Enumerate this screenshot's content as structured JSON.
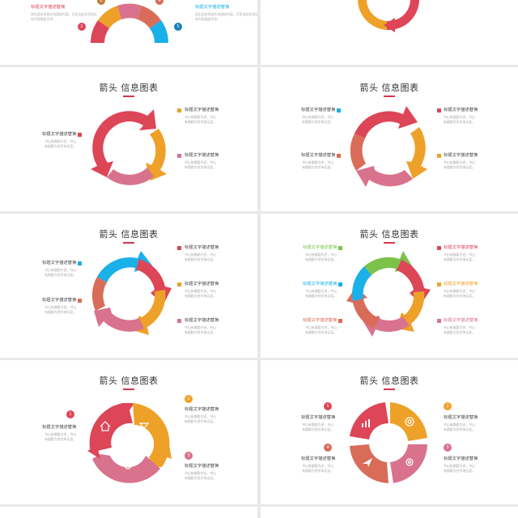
{
  "colors": {
    "red": "#dd4657",
    "orange": "#eea129",
    "pink": "#d9728c",
    "blue": "#1ab0e8",
    "green": "#7cc24a",
    "coral": "#d96c59",
    "rose": "#c8556c",
    "accent": "#d6364c",
    "background": "#e9e9ec"
  },
  "common": {
    "slide_title": "箭头 信息图表",
    "item_title": "标题文字描述替换",
    "item_desc_a": "书山有路勤为径，书山",
    "item_desc_b": "有路勤为径学海无涯。",
    "item_desc_long_a": "双击此处添加文本描述内容，可",
    "item_desc_long_b": "双击此处添加文本内容描述文字。"
  },
  "badges": [
    "1",
    "2",
    "3",
    "4",
    "5"
  ],
  "icons": [
    "home-icon",
    "flower-icon",
    "gear-icon",
    "chart-icon",
    "plane-icon",
    "lifebuoy-icon"
  ],
  "slides": [
    {
      "id": "s1",
      "title": "箭头 信息图表",
      "items": 2
    },
    {
      "id": "s2",
      "title": "箭头 信息图表",
      "items": 0
    },
    {
      "id": "s3",
      "title": "箭头 信息图表",
      "items": 3
    },
    {
      "id": "s4",
      "title": "箭头 信息图表",
      "items": 4
    },
    {
      "id": "s5",
      "title": "箭头 信息图表",
      "items": 5
    },
    {
      "id": "s6",
      "title": "箭头 信息图表",
      "items": 6
    },
    {
      "id": "s7",
      "title": "箭头 信息图表",
      "items": 3
    },
    {
      "id": "s8",
      "title": "箭头 信息图表",
      "items": 4
    }
  ]
}
